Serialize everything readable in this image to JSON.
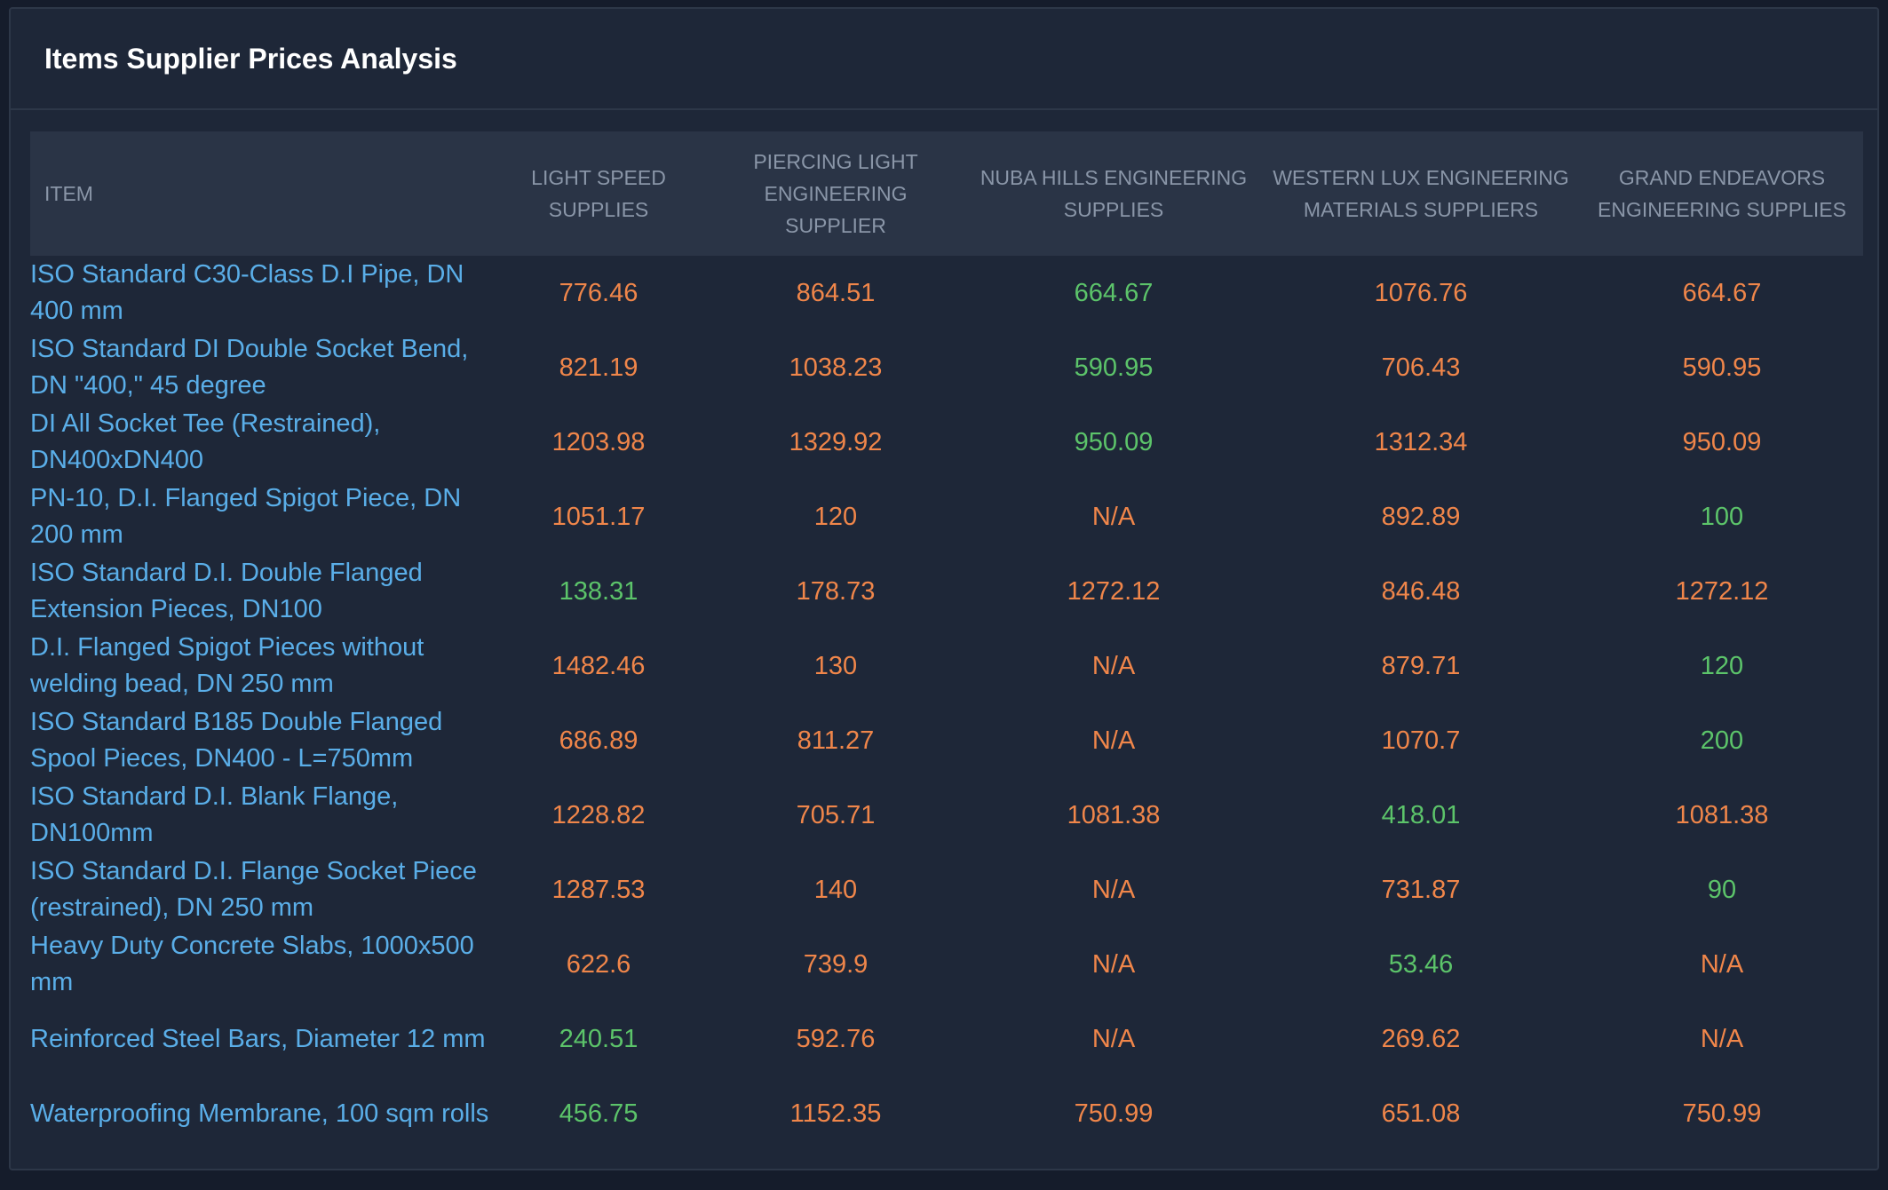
{
  "panel": {
    "title": "Items Supplier Prices Analysis"
  },
  "colors": {
    "higher_price": "#f0864a",
    "lowest_price": "#5cc46a",
    "item_link": "#5aaee8"
  },
  "table": {
    "headers": [
      "ITEM",
      "LIGHT SPEED SUPPLIES",
      "PIERCING LIGHT ENGINEERING SUPPLIER",
      "NUBA HILLS ENGINEERING SUPPLIES",
      "WESTERN LUX ENGINEERING MATERIALS SUPPLIERS",
      "GRAND ENDEAVORS ENGINEERING SUPPLIES"
    ],
    "rows": [
      {
        "item": "ISO Standard C30-Class D.I Pipe, DN 400 mm",
        "prices": [
          "776.46",
          "864.51",
          "664.67",
          "1076.76",
          "664.67"
        ],
        "status": [
          "orange",
          "orange",
          "green",
          "orange",
          "orange"
        ]
      },
      {
        "item": "ISO Standard DI Double Socket Bend, DN \"400,\" 45 degree",
        "prices": [
          "821.19",
          "1038.23",
          "590.95",
          "706.43",
          "590.95"
        ],
        "status": [
          "orange",
          "orange",
          "green",
          "orange",
          "orange"
        ]
      },
      {
        "item": "DI All Socket Tee (Restrained), DN400xDN400",
        "prices": [
          "1203.98",
          "1329.92",
          "950.09",
          "1312.34",
          "950.09"
        ],
        "status": [
          "orange",
          "orange",
          "green",
          "orange",
          "orange"
        ]
      },
      {
        "item": "PN-10, D.I. Flanged Spigot Piece, DN 200 mm",
        "prices": [
          "1051.17",
          "120",
          "N/A",
          "892.89",
          "100"
        ],
        "status": [
          "orange",
          "orange",
          "orange",
          "orange",
          "green"
        ]
      },
      {
        "item": "ISO Standard D.I. Double Flanged Extension Pieces, DN100",
        "prices": [
          "138.31",
          "178.73",
          "1272.12",
          "846.48",
          "1272.12"
        ],
        "status": [
          "green",
          "orange",
          "orange",
          "orange",
          "orange"
        ]
      },
      {
        "item": "D.I. Flanged Spigot Pieces without welding bead, DN 250 mm",
        "prices": [
          "1482.46",
          "130",
          "N/A",
          "879.71",
          "120"
        ],
        "status": [
          "orange",
          "orange",
          "orange",
          "orange",
          "green"
        ]
      },
      {
        "item": "ISO Standard B185 Double Flanged Spool Pieces, DN400 - L=750mm",
        "prices": [
          "686.89",
          "811.27",
          "N/A",
          "1070.7",
          "200"
        ],
        "status": [
          "orange",
          "orange",
          "orange",
          "orange",
          "green"
        ]
      },
      {
        "item": "ISO Standard D.I. Blank Flange, DN100mm",
        "prices": [
          "1228.82",
          "705.71",
          "1081.38",
          "418.01",
          "1081.38"
        ],
        "status": [
          "orange",
          "orange",
          "orange",
          "green",
          "orange"
        ]
      },
      {
        "item": "ISO Standard D.I. Flange Socket Piece (restrained), DN 250 mm",
        "prices": [
          "1287.53",
          "140",
          "N/A",
          "731.87",
          "90"
        ],
        "status": [
          "orange",
          "orange",
          "orange",
          "orange",
          "green"
        ]
      },
      {
        "item": "Heavy Duty Concrete Slabs, 1000x500 mm",
        "prices": [
          "622.6",
          "739.9",
          "N/A",
          "53.46",
          "N/A"
        ],
        "status": [
          "orange",
          "orange",
          "orange",
          "green",
          "orange"
        ]
      },
      {
        "item": "Reinforced Steel Bars, Diameter 12 mm",
        "prices": [
          "240.51",
          "592.76",
          "N/A",
          "269.62",
          "N/A"
        ],
        "status": [
          "green",
          "orange",
          "orange",
          "orange",
          "orange"
        ]
      },
      {
        "item": "Waterproofing Membrane, 100 sqm rolls",
        "prices": [
          "456.75",
          "1152.35",
          "750.99",
          "651.08",
          "750.99"
        ],
        "status": [
          "green",
          "orange",
          "orange",
          "orange",
          "orange"
        ]
      }
    ]
  }
}
